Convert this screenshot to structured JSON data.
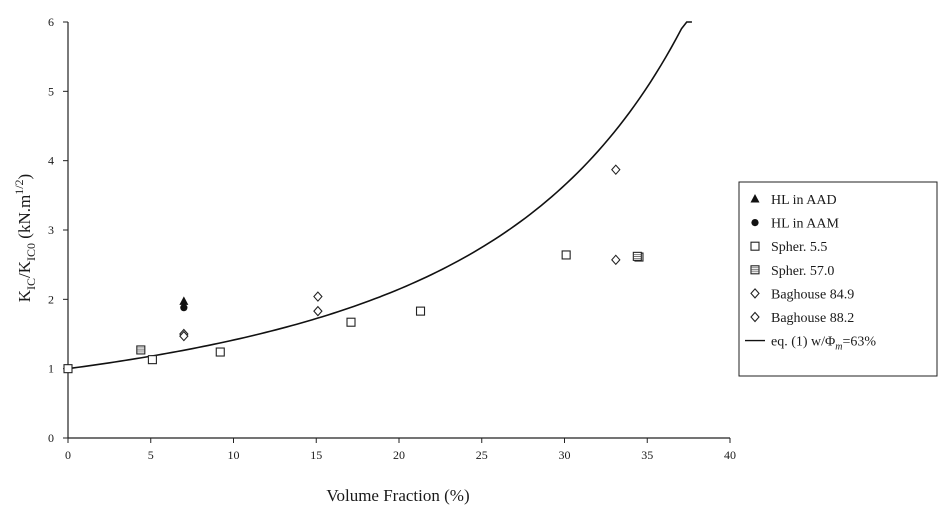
{
  "chart_data": {
    "type": "scatter",
    "title": "",
    "xlabel": "Volume Fraction (%)",
    "ylabel": {
      "main": "K",
      "sub1": "IC",
      "slash": "/K",
      "sub2": "IC0",
      "unit_open": " (kN.m",
      "unit_sup": "1/2",
      "unit_close": ")"
    },
    "xlim": [
      0,
      40
    ],
    "ylim": [
      0,
      6
    ],
    "xticks": [
      "0",
      "5",
      "10",
      "15",
      "20",
      "25",
      "30",
      "35",
      "40"
    ],
    "yticks": [
      "0",
      "1",
      "2",
      "3",
      "4",
      "5",
      "6"
    ],
    "legend_position": "right",
    "series": [
      {
        "name": "HL in AAD",
        "marker": "triangle-filled",
        "points": [
          [
            7.0,
            1.97
          ]
        ]
      },
      {
        "name": "HL in AAM",
        "marker": "circle-filled",
        "points": [
          [
            7.0,
            1.88
          ]
        ]
      },
      {
        "name": "Spher. 5.5",
        "marker": "square-open",
        "points": [
          [
            0,
            1.0
          ],
          [
            5.1,
            1.13
          ],
          [
            9.2,
            1.24
          ],
          [
            17.1,
            1.67
          ],
          [
            21.3,
            1.83
          ],
          [
            30.1,
            2.64
          ],
          [
            34.5,
            2.61
          ]
        ]
      },
      {
        "name": "Spher. 57.0",
        "marker": "square-hatched",
        "points": [
          [
            4.4,
            1.27
          ],
          [
            34.4,
            2.62
          ]
        ]
      },
      {
        "name": "Baghouse 84.9",
        "marker": "diamond-open",
        "points": [
          [
            7.0,
            1.5
          ],
          [
            15.1,
            2.04
          ],
          [
            33.1,
            3.87
          ]
        ]
      },
      {
        "name": "Baghouse 88.2",
        "marker": "diamond-open",
        "points": [
          [
            7.0,
            1.47
          ],
          [
            15.1,
            1.83
          ],
          [
            33.1,
            2.57
          ]
        ]
      },
      {
        "name": "eq. (1) w/Φm=63%",
        "legend_label": {
          "pre": "eq. (1) w/",
          "phi": "Φ",
          "sub": "m",
          "post": "=63%"
        },
        "marker": "line",
        "phi_m": 0.63,
        "x_range": [
          0,
          37.7
        ]
      }
    ]
  }
}
